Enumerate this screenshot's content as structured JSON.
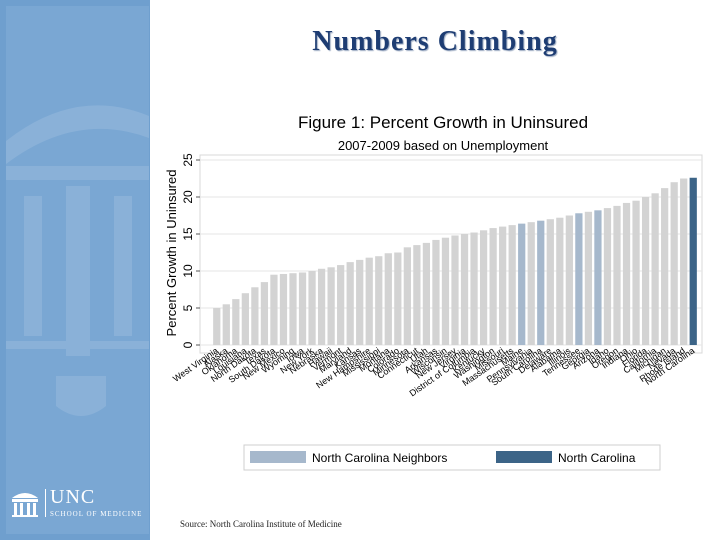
{
  "slide_title": "Numbers Climbing",
  "source_text": "Source: North Carolina Institute of Medicine",
  "logo": {
    "name": "UNC",
    "subtitle": "SCHOOL OF MEDICINE"
  },
  "colors": {
    "default_bar": "#d3d3d3",
    "neighbor_bar": "#a6b8cc",
    "nc_bar": "#3c6487",
    "title": "#1e3d73",
    "sidebar": "#7aa7d3"
  },
  "chart_data": {
    "type": "bar",
    "title": "Figure 1: Percent Growth in Uninsured",
    "subtitle": "2007-2009 based on Unemployment",
    "ylabel": "Percent Growth in Uninsured",
    "xlabel": "",
    "ylim": [
      0,
      25
    ],
    "yticks": [
      0,
      5,
      10,
      15,
      20,
      25
    ],
    "grid": true,
    "categories": [
      "West Virginia",
      "Alaska",
      "Oklahoma",
      "Louisiana",
      "North Dakota",
      "Texas",
      "South Dakota",
      "New Mexico",
      "Wyoming",
      "Iowa",
      "New York",
      "Nebraska",
      "Hawaii",
      "Vermont",
      "Maryland",
      "Kansas",
      "New Hampshire",
      "Mississippi",
      "Montana",
      "Colorado",
      "Minnesota",
      "Connecticut",
      "Utah",
      "Arkansas",
      "Wisconsin",
      "New Jersey",
      "Virginia",
      "District of Columbia",
      "Kentucky",
      "Washington",
      "Missouri",
      "Massachusetts",
      "Maine",
      "Pennsylvania",
      "South Carolina",
      "Delaware",
      "Alabama",
      "Illinois",
      "Tennessee",
      "Georgia",
      "Arizona",
      "Idaho",
      "Oregon",
      "Indiana",
      "Ohio",
      "Florida",
      "California",
      "Michigan",
      "Nevada",
      "Rhode Island",
      "North Carolina"
    ],
    "values": [
      5.0,
      5.5,
      6.2,
      7.0,
      7.8,
      8.5,
      9.5,
      9.6,
      9.7,
      9.8,
      10.0,
      10.3,
      10.5,
      10.8,
      11.2,
      11.5,
      11.8,
      12.0,
      12.4,
      12.5,
      13.2,
      13.5,
      13.8,
      14.2,
      14.5,
      14.8,
      15.0,
      15.2,
      15.5,
      15.8,
      16.0,
      16.2,
      16.4,
      16.6,
      16.8,
      17.0,
      17.2,
      17.5,
      17.8,
      18.0,
      18.2,
      18.5,
      18.8,
      19.2,
      19.5,
      20.0,
      20.5,
      21.2,
      22.0,
      22.5,
      22.6
    ],
    "groups": [
      "other",
      "other",
      "other",
      "other",
      "other",
      "other",
      "other",
      "other",
      "other",
      "other",
      "other",
      "other",
      "other",
      "other",
      "other",
      "other",
      "other",
      "other",
      "other",
      "other",
      "other",
      "other",
      "other",
      "other",
      "other",
      "other",
      "other",
      "other",
      "other",
      "other",
      "other",
      "other",
      "neighbor",
      "other",
      "neighbor",
      "other",
      "other",
      "other",
      "neighbor",
      "other",
      "neighbor",
      "other",
      "other",
      "other",
      "other",
      "other",
      "other",
      "other",
      "other",
      "other",
      "nc"
    ],
    "legend": [
      {
        "label": "North Carolina Neighbors",
        "group": "neighbor"
      },
      {
        "label": "North Carolina",
        "group": "nc"
      }
    ],
    "legend_position": "bottom"
  }
}
